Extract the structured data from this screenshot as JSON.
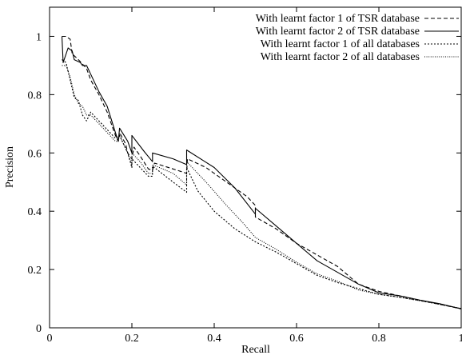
{
  "chart_data": {
    "type": "line",
    "xlabel": "Recall",
    "ylabel": "Precision",
    "xlim": [
      0,
      1
    ],
    "ylim": [
      0,
      1.1
    ],
    "xticks": [
      "0",
      "0.2",
      "0.4",
      "0.6",
      "0.8",
      "1"
    ],
    "yticks": [
      "0",
      "0.2",
      "0.4",
      "0.6",
      "0.8",
      "1"
    ],
    "grid": false,
    "legend_position": "top-right",
    "series": [
      {
        "name": "With learnt factor 1 of TSR database",
        "style": "dashed",
        "points": [
          [
            0.03,
            1.0
          ],
          [
            0.04,
            1.0
          ],
          [
            0.05,
            0.99
          ],
          [
            0.055,
            0.94
          ],
          [
            0.07,
            0.92
          ],
          [
            0.09,
            0.89
          ],
          [
            0.1,
            0.85
          ],
          [
            0.12,
            0.8
          ],
          [
            0.14,
            0.74
          ],
          [
            0.16,
            0.66
          ],
          [
            0.167,
            0.64
          ],
          [
            0.17,
            0.67
          ],
          [
            0.185,
            0.63
          ],
          [
            0.19,
            0.6
          ],
          [
            0.2,
            0.58
          ],
          [
            0.205,
            0.62
          ],
          [
            0.22,
            0.59
          ],
          [
            0.24,
            0.545
          ],
          [
            0.25,
            0.54
          ],
          [
            0.255,
            0.565
          ],
          [
            0.3,
            0.545
          ],
          [
            0.333,
            0.53
          ],
          [
            0.335,
            0.58
          ],
          [
            0.38,
            0.55
          ],
          [
            0.43,
            0.5
          ],
          [
            0.48,
            0.45
          ],
          [
            0.5,
            0.42
          ],
          [
            0.5,
            0.38
          ],
          [
            0.55,
            0.34
          ],
          [
            0.6,
            0.29
          ],
          [
            0.65,
            0.25
          ],
          [
            0.7,
            0.21
          ],
          [
            0.75,
            0.15
          ],
          [
            0.8,
            0.125
          ],
          [
            0.85,
            0.11
          ],
          [
            0.9,
            0.095
          ],
          [
            0.95,
            0.08
          ],
          [
            1.0,
            0.065
          ]
        ]
      },
      {
        "name": "With learnt factor 2 of TSR database",
        "style": "solid",
        "points": [
          [
            0.03,
            1.0
          ],
          [
            0.033,
            0.91
          ],
          [
            0.045,
            0.96
          ],
          [
            0.055,
            0.95
          ],
          [
            0.06,
            0.92
          ],
          [
            0.075,
            0.91
          ],
          [
            0.08,
            0.9
          ],
          [
            0.09,
            0.9
          ],
          [
            0.1,
            0.87
          ],
          [
            0.12,
            0.81
          ],
          [
            0.14,
            0.76
          ],
          [
            0.16,
            0.67
          ],
          [
            0.167,
            0.64
          ],
          [
            0.17,
            0.685
          ],
          [
            0.19,
            0.64
          ],
          [
            0.2,
            0.6
          ],
          [
            0.2,
            0.66
          ],
          [
            0.23,
            0.605
          ],
          [
            0.25,
            0.57
          ],
          [
            0.25,
            0.6
          ],
          [
            0.3,
            0.58
          ],
          [
            0.333,
            0.56
          ],
          [
            0.333,
            0.61
          ],
          [
            0.4,
            0.55
          ],
          [
            0.45,
            0.48
          ],
          [
            0.5,
            0.39
          ],
          [
            0.5,
            0.41
          ],
          [
            0.55,
            0.35
          ],
          [
            0.6,
            0.29
          ],
          [
            0.65,
            0.23
          ],
          [
            0.7,
            0.19
          ],
          [
            0.75,
            0.15
          ],
          [
            0.8,
            0.12
          ],
          [
            0.85,
            0.11
          ],
          [
            0.9,
            0.095
          ],
          [
            0.95,
            0.082
          ],
          [
            1.0,
            0.065
          ]
        ]
      },
      {
        "name": "With learnt factor 1 of all databases",
        "style": "dotted",
        "points": [
          [
            0.03,
            0.92
          ],
          [
            0.04,
            0.91
          ],
          [
            0.05,
            0.85
          ],
          [
            0.06,
            0.79
          ],
          [
            0.07,
            0.78
          ],
          [
            0.08,
            0.73
          ],
          [
            0.09,
            0.71
          ],
          [
            0.1,
            0.74
          ],
          [
            0.12,
            0.71
          ],
          [
            0.14,
            0.68
          ],
          [
            0.16,
            0.65
          ],
          [
            0.17,
            0.66
          ],
          [
            0.19,
            0.6
          ],
          [
            0.2,
            0.55
          ],
          [
            0.2,
            0.58
          ],
          [
            0.22,
            0.55
          ],
          [
            0.24,
            0.52
          ],
          [
            0.25,
            0.52
          ],
          [
            0.25,
            0.555
          ],
          [
            0.3,
            0.5
          ],
          [
            0.333,
            0.465
          ],
          [
            0.333,
            0.55
          ],
          [
            0.36,
            0.47
          ],
          [
            0.4,
            0.4
          ],
          [
            0.45,
            0.34
          ],
          [
            0.5,
            0.295
          ],
          [
            0.55,
            0.26
          ],
          [
            0.6,
            0.22
          ],
          [
            0.65,
            0.18
          ],
          [
            0.7,
            0.155
          ],
          [
            0.75,
            0.135
          ],
          [
            0.8,
            0.115
          ],
          [
            0.85,
            0.105
          ],
          [
            0.9,
            0.093
          ],
          [
            0.95,
            0.08
          ],
          [
            1.0,
            0.066
          ]
        ]
      },
      {
        "name": "With learnt factor 2 of all databases",
        "style": "fine-dotted",
        "points": [
          [
            0.03,
            0.9
          ],
          [
            0.04,
            0.9
          ],
          [
            0.05,
            0.86
          ],
          [
            0.06,
            0.8
          ],
          [
            0.07,
            0.77
          ],
          [
            0.08,
            0.76
          ],
          [
            0.09,
            0.73
          ],
          [
            0.1,
            0.73
          ],
          [
            0.12,
            0.7
          ],
          [
            0.14,
            0.67
          ],
          [
            0.16,
            0.64
          ],
          [
            0.167,
            0.64
          ],
          [
            0.17,
            0.66
          ],
          [
            0.19,
            0.6
          ],
          [
            0.2,
            0.56
          ],
          [
            0.2,
            0.6
          ],
          [
            0.22,
            0.57
          ],
          [
            0.24,
            0.53
          ],
          [
            0.25,
            0.53
          ],
          [
            0.25,
            0.56
          ],
          [
            0.3,
            0.53
          ],
          [
            0.333,
            0.49
          ],
          [
            0.333,
            0.57
          ],
          [
            0.38,
            0.5
          ],
          [
            0.43,
            0.42
          ],
          [
            0.47,
            0.36
          ],
          [
            0.5,
            0.31
          ],
          [
            0.55,
            0.27
          ],
          [
            0.6,
            0.225
          ],
          [
            0.65,
            0.185
          ],
          [
            0.7,
            0.16
          ],
          [
            0.75,
            0.13
          ],
          [
            0.8,
            0.115
          ],
          [
            0.85,
            0.105
          ],
          [
            0.9,
            0.093
          ],
          [
            0.95,
            0.08
          ],
          [
            1.0,
            0.066
          ]
        ]
      }
    ]
  }
}
